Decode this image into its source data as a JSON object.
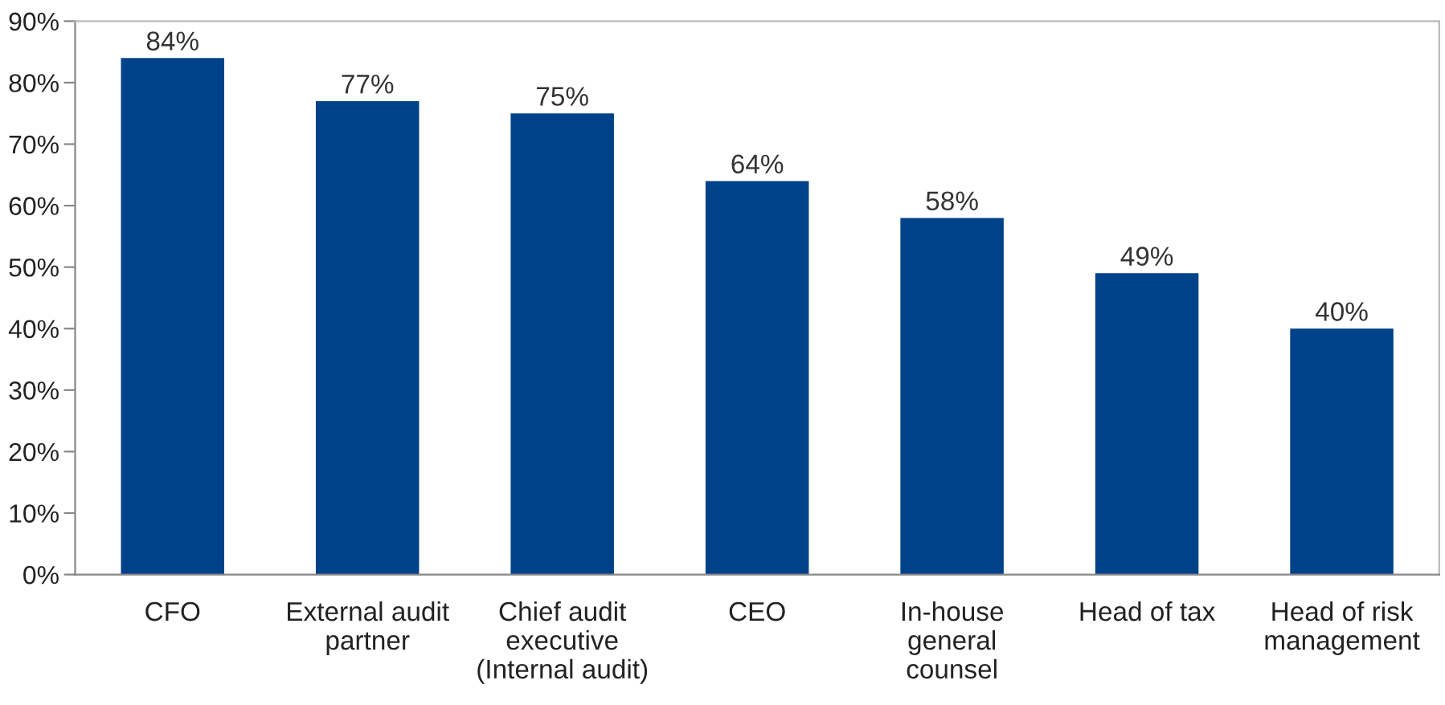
{
  "chart_data": {
    "type": "bar",
    "categories": [
      "CFO",
      "External audit\npartner",
      "Chief audit\nexecutive\n(Internal audit)",
      "CEO",
      "In-house\ngeneral\ncounsel",
      "Head of tax",
      "Head of risk\nmanagement"
    ],
    "values": [
      84,
      77,
      75,
      64,
      58,
      49,
      40
    ],
    "value_labels": [
      "84%",
      "77%",
      "75%",
      "64%",
      "58%",
      "49%",
      "40%"
    ],
    "color": "#00428a",
    "ylim": [
      0,
      90
    ],
    "yticks": [
      {
        "value": 0,
        "label": "0%"
      },
      {
        "value": 10,
        "label": "10%"
      },
      {
        "value": 20,
        "label": "20%"
      },
      {
        "value": 30,
        "label": "30%"
      },
      {
        "value": 40,
        "label": "40%"
      },
      {
        "value": 50,
        "label": "50%"
      },
      {
        "value": 60,
        "label": "60%"
      },
      {
        "value": 70,
        "label": "70%"
      },
      {
        "value": 80,
        "label": "80%"
      },
      {
        "value": 90,
        "label": "90%"
      }
    ],
    "grid": false
  }
}
